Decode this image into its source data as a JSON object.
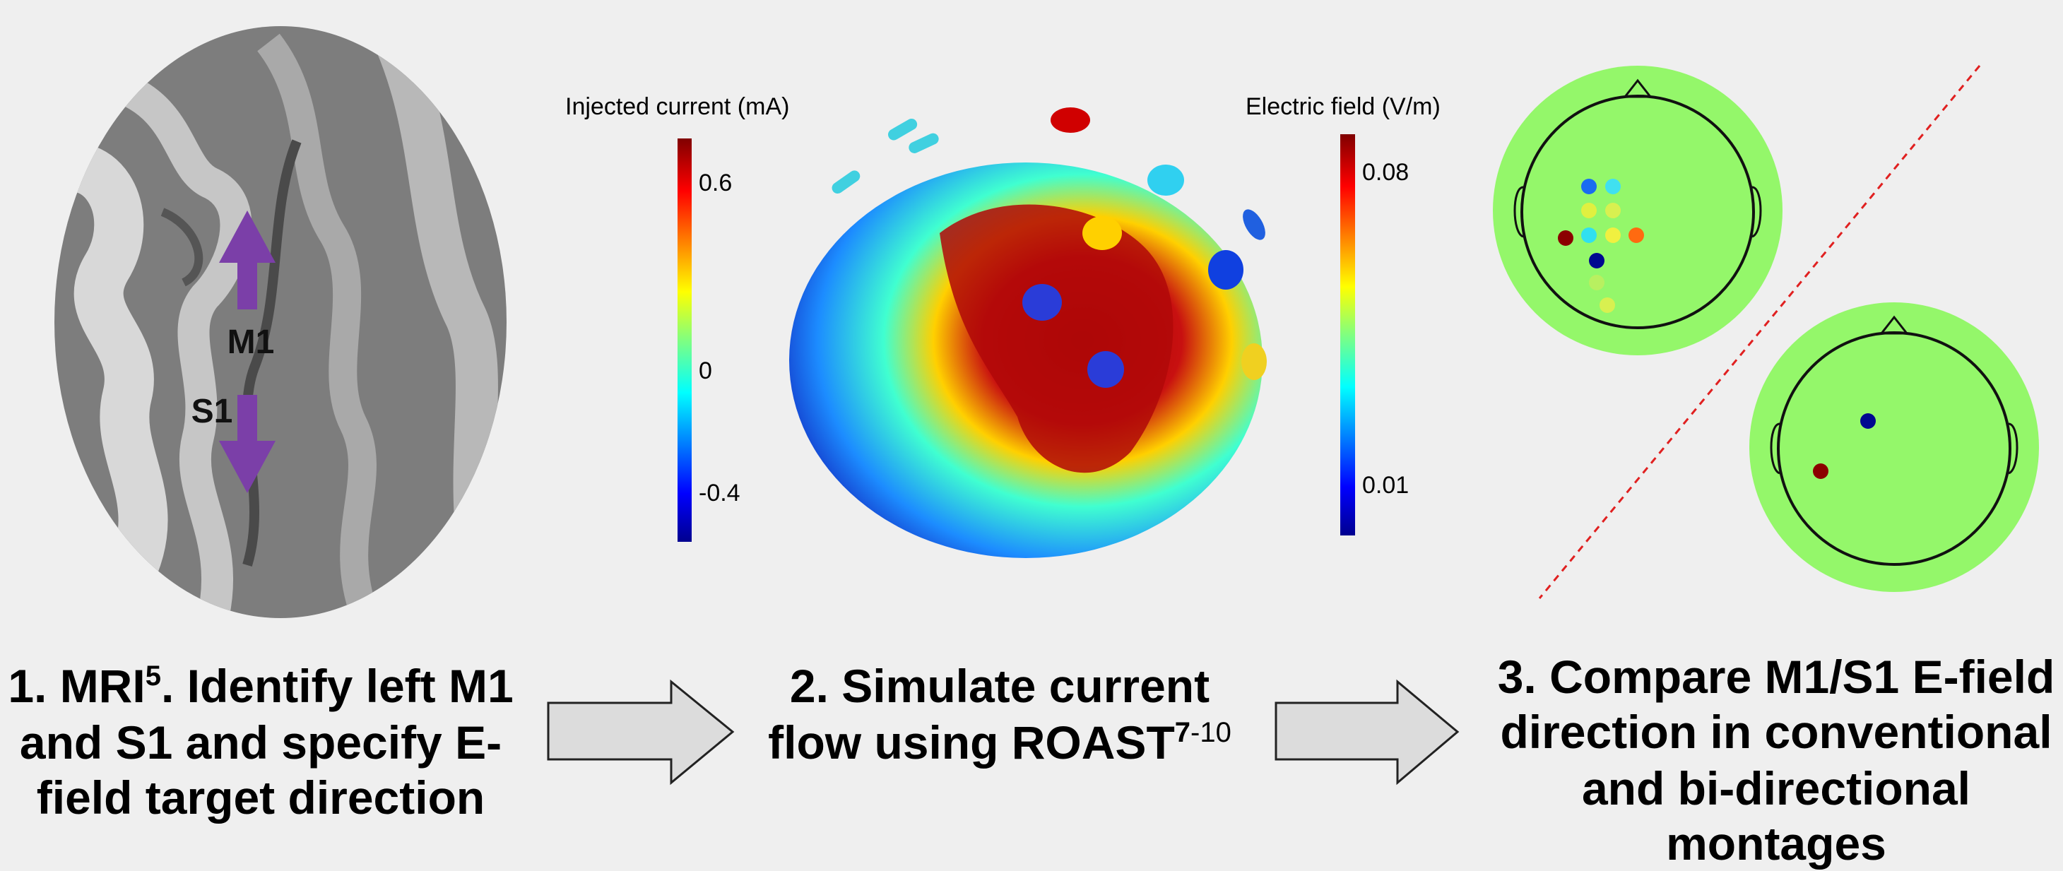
{
  "mri": {
    "labels": [
      "M1",
      "S1"
    ]
  },
  "colorbars": [
    {
      "title": "Injected current (mA)",
      "ticks": [
        "0.6",
        "0",
        "-0.4"
      ]
    },
    {
      "title": "Electric field (V/m)",
      "ticks": [
        "0.08",
        "0.01"
      ]
    }
  ],
  "steps": [
    {
      "lines": [
        [
          "1. MRI",
          "5",
          ". Identify left M1"
        ],
        [
          "and S1 and specify E-"
        ],
        [
          "field target direction"
        ]
      ]
    },
    {
      "lines": [
        [
          "2. Simulate current"
        ],
        [
          "flow using ROAST",
          "7",
          "-10"
        ]
      ]
    },
    {
      "lines": [
        [
          "3. Compare M1/S1 E-field"
        ],
        [
          "direction in conventional"
        ],
        [
          "and bi-directional"
        ],
        [
          "montages"
        ]
      ]
    }
  ]
}
